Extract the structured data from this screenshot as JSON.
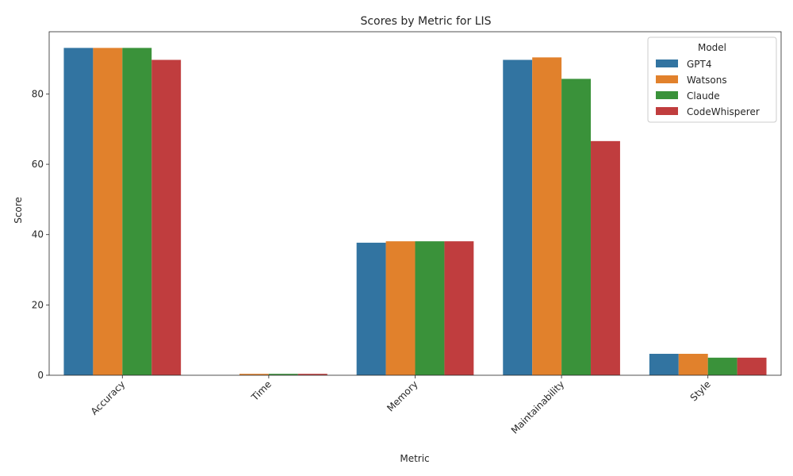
{
  "chart_data": {
    "type": "bar",
    "title": "Scores by Metric for LIS",
    "xlabel": "Metric",
    "ylabel": "Score",
    "ylim": [
      0,
      97.7
    ],
    "yticks": [
      0,
      20,
      40,
      60,
      80
    ],
    "categories": [
      "Accuracy",
      "Time",
      "Memory",
      "Maintainability",
      "Style"
    ],
    "legend": {
      "title": "Model",
      "placement": "top-right"
    },
    "grid": false,
    "series": [
      {
        "name": "GPT4",
        "color": "#3274a1",
        "values": [
          93.1,
          0.0,
          37.7,
          89.7,
          6.1
        ]
      },
      {
        "name": "Watsons",
        "color": "#e1812c",
        "values": [
          93.1,
          0.4,
          38.1,
          90.4,
          6.1
        ]
      },
      {
        "name": "Claude",
        "color": "#3a923a",
        "values": [
          93.1,
          0.4,
          38.1,
          84.3,
          5.0
        ]
      },
      {
        "name": "CodeWhisperer",
        "color": "#c03d3e",
        "values": [
          89.7,
          0.4,
          38.1,
          66.6,
          5.0
        ]
      }
    ]
  }
}
